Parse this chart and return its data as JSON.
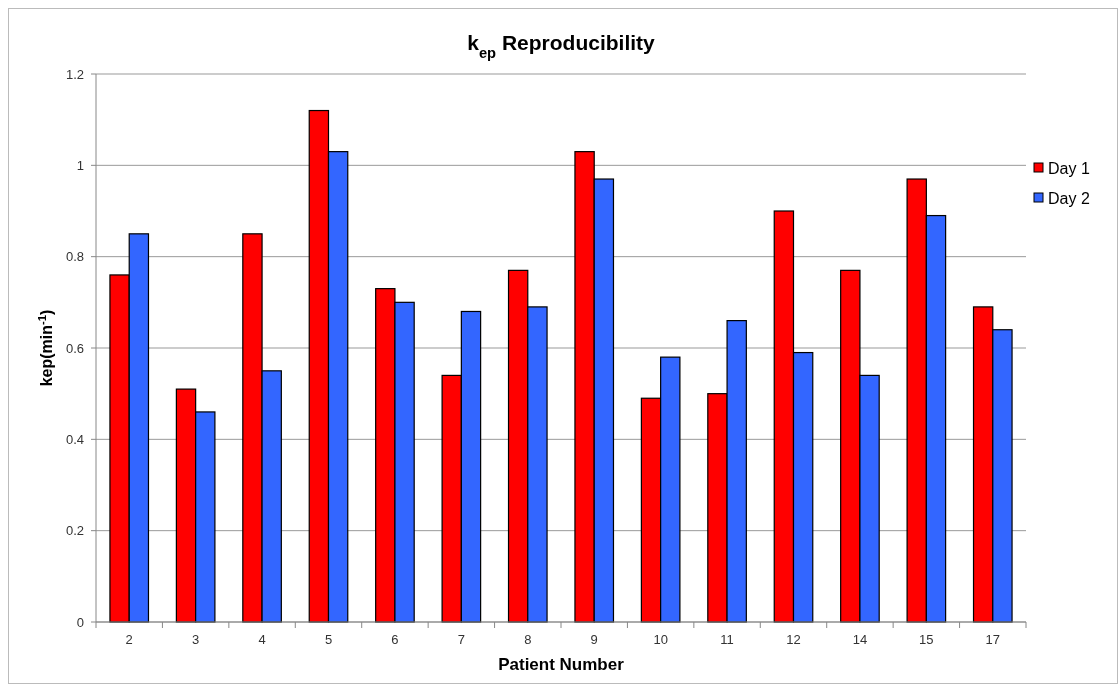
{
  "chart_data": {
    "type": "bar",
    "title": "k$_{ep}$ Reproducibility",
    "xlabel": "Patient Number",
    "ylabel": "kep(min$^{-1}$)",
    "categories": [
      "2",
      "3",
      "4",
      "5",
      "6",
      "7",
      "8",
      "9",
      "10",
      "11",
      "12",
      "14",
      "15",
      "17"
    ],
    "series": [
      {
        "name": "Day 1",
        "color": "#ff0000",
        "values": [
          0.76,
          0.51,
          0.85,
          1.12,
          0.73,
          0.54,
          0.77,
          1.03,
          0.49,
          0.5,
          0.9,
          0.77,
          0.97,
          0.69
        ]
      },
      {
        "name": "Day 2",
        "color": "#3366ff",
        "values": [
          0.85,
          0.46,
          0.55,
          1.03,
          0.7,
          0.68,
          0.69,
          0.97,
          0.58,
          0.66,
          0.59,
          0.54,
          0.89,
          0.64
        ]
      }
    ],
    "ylim": [
      0,
      1.2
    ],
    "yticks": [
      0,
      0.2,
      0.4,
      0.6,
      0.8,
      1,
      1.2
    ],
    "grid": "y",
    "legend": "right"
  }
}
